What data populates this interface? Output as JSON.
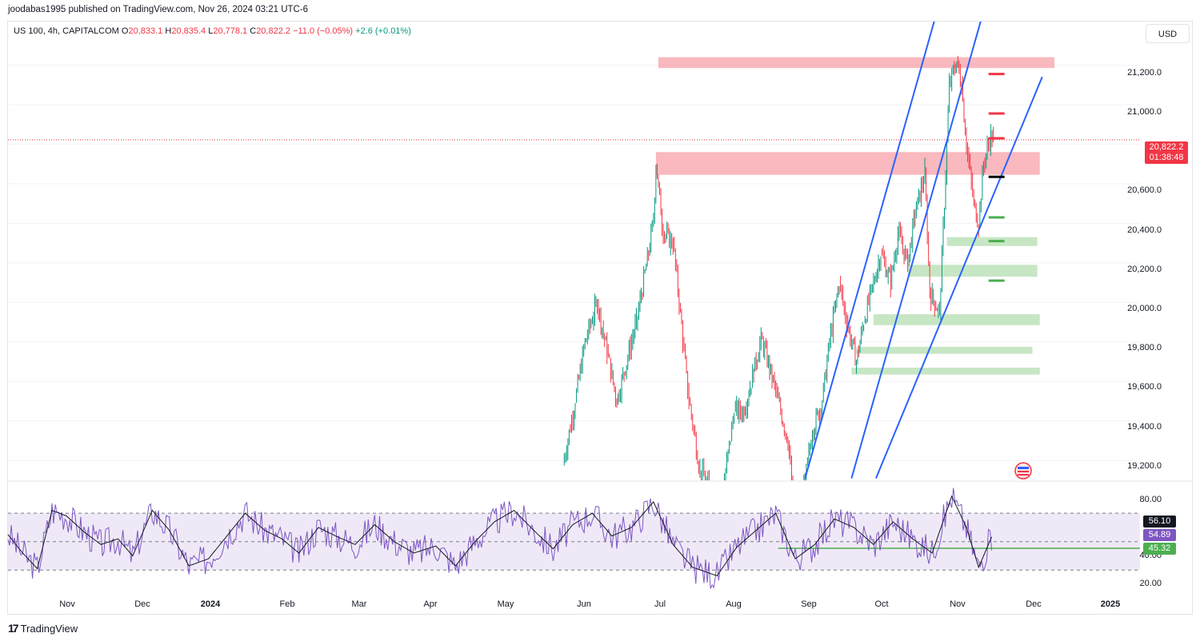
{
  "header": {
    "published_line": "joodabas1995 published on TradingView.com, Nov 26, 2024 03:21 UTC-6"
  },
  "legend": {
    "symbol": "US 100, 4h, CAPITALCOM",
    "o_label": "O",
    "o_value": "20,833.1",
    "h_label": "H",
    "h_value": "20,835.4",
    "l_label": "L",
    "l_value": "20,778.1",
    "c_label": "C",
    "c_value": "20,822.2",
    "change": "−11.0 (−0.05%)",
    "extra": "+2.6 (+0.01%)"
  },
  "currency_button": {
    "label": "USD"
  },
  "price_axis": {
    "ticks": [
      "21,200.0",
      "21,000.0",
      "20,600.0",
      "20,400.0",
      "20,200.0",
      "20,000.0",
      "19,800.0",
      "19,600.0",
      "19,400.0",
      "19,200.0"
    ],
    "last_price": "20,822.2",
    "countdown": "01:38:48"
  },
  "rsi_axis": {
    "ticks": [
      "80.00",
      "40.00",
      "20.00"
    ],
    "value_a": "56.10",
    "value_b": "54.89",
    "value_c": "45.32"
  },
  "time_axis": {
    "labels": [
      "Nov",
      "Dec",
      "2024",
      "Feb",
      "Mar",
      "Apr",
      "May",
      "Jun",
      "Jul",
      "Aug",
      "Sep",
      "Oct",
      "Nov",
      "Dec",
      "2025"
    ]
  },
  "footer": {
    "brand": "TradingView",
    "logo": "17"
  },
  "colors": {
    "up": "#089981",
    "down": "#f23645",
    "trendline": "#2962ff",
    "resistance_zone": "#f7a1a8",
    "support_zone": "#b9e0b5",
    "rsi": "#7e57c2",
    "rsi_band": "#ede7f6"
  },
  "chart_data": {
    "type": "candlestick",
    "symbol": "US 100",
    "timeframe": "4h",
    "y_range": [
      19100,
      21420
    ],
    "x_range": [
      "2023-10-20",
      "2025-01-25"
    ],
    "ohlc_last": {
      "open": 20833.1,
      "high": 20835.4,
      "low": 20778.1,
      "close": 20822.2
    },
    "price_path": [
      [
        "2024-06-03",
        19180
      ],
      [
        "2024-06-08",
        19500
      ],
      [
        "2024-06-12",
        19800
      ],
      [
        "2024-06-17",
        20000
      ],
      [
        "2024-06-21",
        19750
      ],
      [
        "2024-06-25",
        19500
      ],
      [
        "2024-06-28",
        19650
      ],
      [
        "2024-07-03",
        19900
      ],
      [
        "2024-07-08",
        20250
      ],
      [
        "2024-07-10",
        20420
      ],
      [
        "2024-07-11",
        20700
      ],
      [
        "2024-07-14",
        20350
      ],
      [
        "2024-07-18",
        20300
      ],
      [
        "2024-07-21",
        19950
      ],
      [
        "2024-07-24",
        19550
      ],
      [
        "2024-07-29",
        19150
      ],
      [
        "2024-08-05",
        19000
      ],
      [
        "2024-08-08",
        19100
      ],
      [
        "2024-08-12",
        19450
      ],
      [
        "2024-08-16",
        19450
      ],
      [
        "2024-08-20",
        19650
      ],
      [
        "2024-08-23",
        19820
      ],
      [
        "2024-08-27",
        19650
      ],
      [
        "2024-08-30",
        19500
      ],
      [
        "2024-09-03",
        19300
      ],
      [
        "2024-09-06",
        18900
      ],
      [
        "2024-09-10",
        19100
      ],
      [
        "2024-09-13",
        19350
      ],
      [
        "2024-09-17",
        19500
      ],
      [
        "2024-09-20",
        19800
      ],
      [
        "2024-09-24",
        20100
      ],
      [
        "2024-09-27",
        19900
      ],
      [
        "2024-10-01",
        19700
      ],
      [
        "2024-10-04",
        19900
      ],
      [
        "2024-10-08",
        20100
      ],
      [
        "2024-10-11",
        20250
      ],
      [
        "2024-10-15",
        20100
      ],
      [
        "2024-10-18",
        20350
      ],
      [
        "2024-10-22",
        20200
      ],
      [
        "2024-10-25",
        20450
      ],
      [
        "2024-10-29",
        20650
      ],
      [
        "2024-10-31",
        20050
      ],
      [
        "2024-11-04",
        19950
      ],
      [
        "2024-11-06",
        20500
      ],
      [
        "2024-11-08",
        21100
      ],
      [
        "2024-11-11",
        21220
      ],
      [
        "2024-11-13",
        21100
      ],
      [
        "2024-11-15",
        20800
      ],
      [
        "2024-11-18",
        20500
      ],
      [
        "2024-11-20",
        20400
      ],
      [
        "2024-11-22",
        20700
      ],
      [
        "2024-11-25",
        20850
      ],
      [
        "2024-11-26",
        20822
      ]
    ],
    "resistance_zones": [
      {
        "from": "2024-07-12",
        "to": "2024-12-21",
        "low": 21185,
        "high": 21240
      },
      {
        "from": "2024-07-11",
        "to": "2024-12-15",
        "low": 20645,
        "high": 20760
      }
    ],
    "support_zones": [
      {
        "from": "2024-11-07",
        "to": "2024-12-14",
        "low": 20285,
        "high": 20330
      },
      {
        "from": "2024-10-22",
        "to": "2024-12-14",
        "low": 20130,
        "high": 20190
      },
      {
        "from": "2024-10-08",
        "to": "2024-12-15",
        "low": 19885,
        "high": 19940
      },
      {
        "from": "2024-10-01",
        "to": "2024-12-12",
        "low": 19740,
        "high": 19775
      },
      {
        "from": "2024-09-29",
        "to": "2024-12-15",
        "low": 19635,
        "high": 19670
      }
    ],
    "target_marks": [
      {
        "date": "2024-11-27",
        "price": 21155,
        "color": "down"
      },
      {
        "date": "2024-11-27",
        "price": 20955,
        "color": "down"
      },
      {
        "date": "2024-11-27",
        "price": 20830,
        "color": "down"
      },
      {
        "date": "2024-11-27",
        "price": 20635,
        "color": "black"
      },
      {
        "date": "2024-11-27",
        "price": 20430,
        "color": "up"
      },
      {
        "date": "2024-11-27",
        "price": 20310,
        "color": "up"
      },
      {
        "date": "2024-11-27",
        "price": 20110,
        "color": "up"
      }
    ],
    "trendlines": [
      {
        "from": [
          "2024-09-10",
          19110
        ],
        "to": [
          "2024-11-05",
          21560
        ]
      },
      {
        "from": [
          "2024-09-29",
          19110
        ],
        "to": [
          "2024-11-24",
          21560
        ]
      },
      {
        "from": [
          "2024-10-09",
          19110
        ],
        "to": [
          "2024-12-16",
          21140
        ]
      }
    ],
    "rsi": {
      "y_range": [
        15,
        92
      ],
      "upper_band": 70,
      "lower_band": 30,
      "mid": 50,
      "current": 56.1,
      "signal": 54.89,
      "level_line": 45.32,
      "level_line_from": "2024-08-30",
      "path": [
        [
          "2023-10-20",
          55
        ],
        [
          "2023-10-26",
          42
        ],
        [
          "2023-11-01",
          31
        ],
        [
          "2023-11-07",
          72
        ],
        [
          "2023-11-13",
          68
        ],
        [
          "2023-11-20",
          57
        ],
        [
          "2023-11-27",
          48
        ],
        [
          "2023-12-04",
          52
        ],
        [
          "2023-12-10",
          40
        ],
        [
          "2023-12-18",
          72
        ],
        [
          "2023-12-25",
          58
        ],
        [
          "2024-01-02",
          33
        ],
        [
          "2024-01-10",
          38
        ],
        [
          "2024-01-18",
          55
        ],
        [
          "2024-01-25",
          70
        ],
        [
          "2024-02-02",
          58
        ],
        [
          "2024-02-09",
          52
        ],
        [
          "2024-02-16",
          42
        ],
        [
          "2024-02-24",
          60
        ],
        [
          "2024-03-02",
          54
        ],
        [
          "2024-03-10",
          48
        ],
        [
          "2024-03-18",
          62
        ],
        [
          "2024-03-26",
          50
        ],
        [
          "2024-04-03",
          42
        ],
        [
          "2024-04-12",
          47
        ],
        [
          "2024-04-20",
          33
        ],
        [
          "2024-04-28",
          50
        ],
        [
          "2024-05-06",
          64
        ],
        [
          "2024-05-14",
          72
        ],
        [
          "2024-05-22",
          58
        ],
        [
          "2024-05-30",
          45
        ],
        [
          "2024-06-07",
          62
        ],
        [
          "2024-06-15",
          70
        ],
        [
          "2024-06-23",
          54
        ],
        [
          "2024-07-01",
          60
        ],
        [
          "2024-07-10",
          78
        ],
        [
          "2024-07-18",
          48
        ],
        [
          "2024-07-26",
          32
        ],
        [
          "2024-08-05",
          26
        ],
        [
          "2024-08-13",
          46
        ],
        [
          "2024-08-21",
          58
        ],
        [
          "2024-08-29",
          70
        ],
        [
          "2024-09-06",
          38
        ],
        [
          "2024-09-14",
          48
        ],
        [
          "2024-09-22",
          66
        ],
        [
          "2024-09-30",
          60
        ],
        [
          "2024-10-08",
          48
        ],
        [
          "2024-10-16",
          64
        ],
        [
          "2024-10-24",
          52
        ],
        [
          "2024-11-01",
          42
        ],
        [
          "2024-11-09",
          82
        ],
        [
          "2024-11-15",
          60
        ],
        [
          "2024-11-20",
          32
        ],
        [
          "2024-11-26",
          56
        ]
      ]
    }
  }
}
